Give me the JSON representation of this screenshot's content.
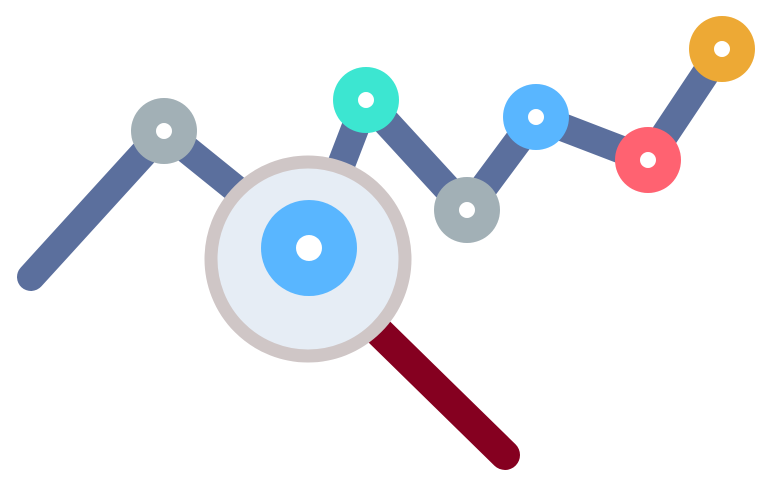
{
  "illustration": {
    "subject": "line-chart-with-magnifying-glass",
    "colors": {
      "line": "#5B6F9D",
      "handle": "#850020",
      "lens_rim": "#CFC6C6",
      "lens_glass": "#E6EDF5",
      "node_center": "#FFFFFF"
    },
    "nodes": [
      {
        "name": "node-start",
        "color": "",
        "marker": false
      },
      {
        "name": "node-gray-1",
        "color": "#A2B0B6",
        "marker": true
      },
      {
        "name": "node-blue-magnified",
        "color": "#59B6FF",
        "marker": true
      },
      {
        "name": "node-teal",
        "color": "#3CE6D1",
        "marker": true
      },
      {
        "name": "node-gray-2",
        "color": "#A2B0B6",
        "marker": true
      },
      {
        "name": "node-blue",
        "color": "#59B6FF",
        "marker": true
      },
      {
        "name": "node-red",
        "color": "#FF6271",
        "marker": true
      },
      {
        "name": "node-orange",
        "color": "#EDA935",
        "marker": true
      }
    ]
  }
}
